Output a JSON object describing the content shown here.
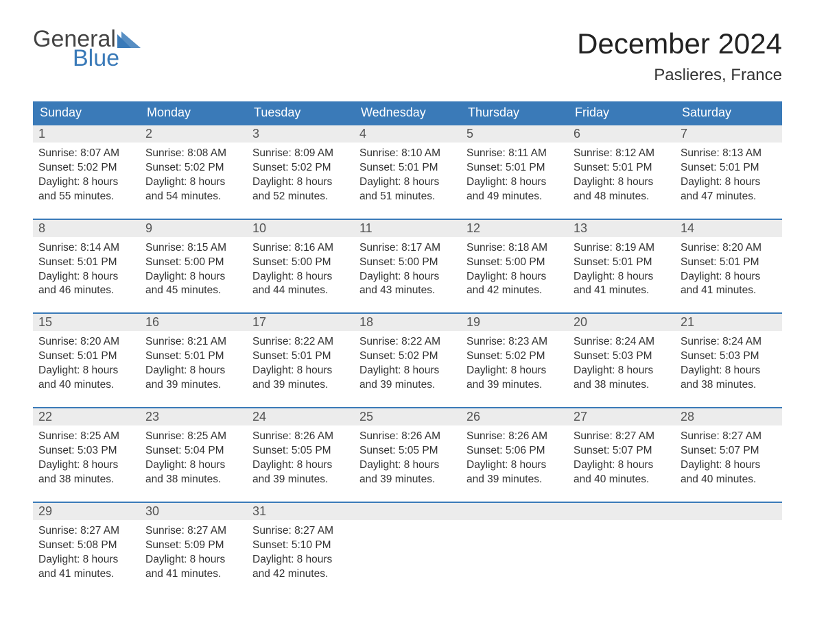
{
  "brand": {
    "general": "General",
    "blue": "Blue",
    "accent_color": "#3a7ab8"
  },
  "title": "December 2024",
  "location": "Paslieres, France",
  "colors": {
    "header_bg": "#3a7ab8",
    "header_text": "#ffffff",
    "daynum_bg": "#ececec",
    "daynum_text": "#555555",
    "week_rule": "#3a7ab8",
    "body_text": "#333333",
    "background": "#ffffff"
  },
  "typography": {
    "title_fontsize": 42,
    "location_fontsize": 24,
    "dayhead_fontsize": 18,
    "daynum_fontsize": 18,
    "detail_fontsize": 15.5,
    "font_family": "Arial"
  },
  "layout": {
    "columns": 7,
    "weeks": 5
  },
  "day_headers": [
    "Sunday",
    "Monday",
    "Tuesday",
    "Wednesday",
    "Thursday",
    "Friday",
    "Saturday"
  ],
  "weeks": [
    [
      {
        "n": "1",
        "sr": "8:07 AM",
        "ss": "5:02 PM",
        "dl": "8 hours and 55 minutes."
      },
      {
        "n": "2",
        "sr": "8:08 AM",
        "ss": "5:02 PM",
        "dl": "8 hours and 54 minutes."
      },
      {
        "n": "3",
        "sr": "8:09 AM",
        "ss": "5:02 PM",
        "dl": "8 hours and 52 minutes."
      },
      {
        "n": "4",
        "sr": "8:10 AM",
        "ss": "5:01 PM",
        "dl": "8 hours and 51 minutes."
      },
      {
        "n": "5",
        "sr": "8:11 AM",
        "ss": "5:01 PM",
        "dl": "8 hours and 49 minutes."
      },
      {
        "n": "6",
        "sr": "8:12 AM",
        "ss": "5:01 PM",
        "dl": "8 hours and 48 minutes."
      },
      {
        "n": "7",
        "sr": "8:13 AM",
        "ss": "5:01 PM",
        "dl": "8 hours and 47 minutes."
      }
    ],
    [
      {
        "n": "8",
        "sr": "8:14 AM",
        "ss": "5:01 PM",
        "dl": "8 hours and 46 minutes."
      },
      {
        "n": "9",
        "sr": "8:15 AM",
        "ss": "5:00 PM",
        "dl": "8 hours and 45 minutes."
      },
      {
        "n": "10",
        "sr": "8:16 AM",
        "ss": "5:00 PM",
        "dl": "8 hours and 44 minutes."
      },
      {
        "n": "11",
        "sr": "8:17 AM",
        "ss": "5:00 PM",
        "dl": "8 hours and 43 minutes."
      },
      {
        "n": "12",
        "sr": "8:18 AM",
        "ss": "5:00 PM",
        "dl": "8 hours and 42 minutes."
      },
      {
        "n": "13",
        "sr": "8:19 AM",
        "ss": "5:01 PM",
        "dl": "8 hours and 41 minutes."
      },
      {
        "n": "14",
        "sr": "8:20 AM",
        "ss": "5:01 PM",
        "dl": "8 hours and 41 minutes."
      }
    ],
    [
      {
        "n": "15",
        "sr": "8:20 AM",
        "ss": "5:01 PM",
        "dl": "8 hours and 40 minutes."
      },
      {
        "n": "16",
        "sr": "8:21 AM",
        "ss": "5:01 PM",
        "dl": "8 hours and 39 minutes."
      },
      {
        "n": "17",
        "sr": "8:22 AM",
        "ss": "5:01 PM",
        "dl": "8 hours and 39 minutes."
      },
      {
        "n": "18",
        "sr": "8:22 AM",
        "ss": "5:02 PM",
        "dl": "8 hours and 39 minutes."
      },
      {
        "n": "19",
        "sr": "8:23 AM",
        "ss": "5:02 PM",
        "dl": "8 hours and 39 minutes."
      },
      {
        "n": "20",
        "sr": "8:24 AM",
        "ss": "5:03 PM",
        "dl": "8 hours and 38 minutes."
      },
      {
        "n": "21",
        "sr": "8:24 AM",
        "ss": "5:03 PM",
        "dl": "8 hours and 38 minutes."
      }
    ],
    [
      {
        "n": "22",
        "sr": "8:25 AM",
        "ss": "5:03 PM",
        "dl": "8 hours and 38 minutes."
      },
      {
        "n": "23",
        "sr": "8:25 AM",
        "ss": "5:04 PM",
        "dl": "8 hours and 38 minutes."
      },
      {
        "n": "24",
        "sr": "8:26 AM",
        "ss": "5:05 PM",
        "dl": "8 hours and 39 minutes."
      },
      {
        "n": "25",
        "sr": "8:26 AM",
        "ss": "5:05 PM",
        "dl": "8 hours and 39 minutes."
      },
      {
        "n": "26",
        "sr": "8:26 AM",
        "ss": "5:06 PM",
        "dl": "8 hours and 39 minutes."
      },
      {
        "n": "27",
        "sr": "8:27 AM",
        "ss": "5:07 PM",
        "dl": "8 hours and 40 minutes."
      },
      {
        "n": "28",
        "sr": "8:27 AM",
        "ss": "5:07 PM",
        "dl": "8 hours and 40 minutes."
      }
    ],
    [
      {
        "n": "29",
        "sr": "8:27 AM",
        "ss": "5:08 PM",
        "dl": "8 hours and 41 minutes."
      },
      {
        "n": "30",
        "sr": "8:27 AM",
        "ss": "5:09 PM",
        "dl": "8 hours and 41 minutes."
      },
      {
        "n": "31",
        "sr": "8:27 AM",
        "ss": "5:10 PM",
        "dl": "8 hours and 42 minutes."
      },
      null,
      null,
      null,
      null
    ]
  ],
  "labels": {
    "sunrise": "Sunrise: ",
    "sunset": "Sunset: ",
    "daylight": "Daylight: "
  }
}
